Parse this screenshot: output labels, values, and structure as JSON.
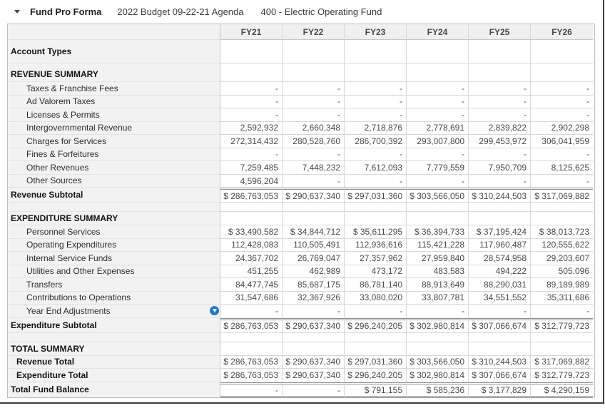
{
  "titlebar": {
    "title": "Fund Pro Forma",
    "agenda": "2022 Budget 09-22-21 Agenda",
    "fund": "400 - Electric Operating Fund"
  },
  "table": {
    "columns": [
      "FY21",
      "FY22",
      "FY23",
      "FY24",
      "FY25",
      "FY26"
    ],
    "rows": [
      {
        "style": "tall-group",
        "label": "Account Types",
        "values": [
          "",
          "",
          "",
          "",
          "",
          ""
        ]
      },
      {
        "style": "section-tall",
        "label": "REVENUE SUMMARY",
        "values": [
          "",
          "",
          "",
          "",
          "",
          ""
        ]
      },
      {
        "style": "item",
        "label": "Taxes & Franchise Fees",
        "values": [
          "-",
          "-",
          "-",
          "-",
          "-",
          "-"
        ]
      },
      {
        "style": "item",
        "label": "Ad Valorem Taxes",
        "values": [
          "-",
          "-",
          "-",
          "-",
          "-",
          "-"
        ]
      },
      {
        "style": "item",
        "label": "Licenses & Permits",
        "values": [
          "-",
          "-",
          "-",
          "-",
          "-",
          "-"
        ]
      },
      {
        "style": "item",
        "label": "Intergovernmental Revenue",
        "values": [
          "2,592,932",
          "2,660,348",
          "2,718,876",
          "2,778,691",
          "2,839,822",
          "2,902,298"
        ]
      },
      {
        "style": "item",
        "label": "Charges for Services",
        "values": [
          "272,314,432",
          "280,528,760",
          "286,700,392",
          "293,007,800",
          "299,453,972",
          "306,041,959"
        ]
      },
      {
        "style": "item",
        "label": "Fines & Forfeitures",
        "values": [
          "-",
          "-",
          "-",
          "-",
          "-",
          "-"
        ]
      },
      {
        "style": "item",
        "label": "Other Revenues",
        "values": [
          "7,259,485",
          "7,448,232",
          "7,612,093",
          "7,779,559",
          "7,950,709",
          "8,125,625"
        ]
      },
      {
        "style": "item",
        "label": "Other Sources",
        "values": [
          "4,596,204",
          "-",
          "-",
          "-",
          "-",
          "-"
        ]
      },
      {
        "style": "subtotal",
        "label": "Revenue Subtotal",
        "values": [
          "$ 286,763,053",
          "$ 290,637,340",
          "$ 297,031,360",
          "$ 303,566,050",
          "$ 310,244,503",
          "$ 317,069,882"
        ]
      },
      {
        "style": "spacer",
        "label": "",
        "values": [
          "",
          "",
          "",
          "",
          "",
          ""
        ]
      },
      {
        "style": "section",
        "label": "EXPENDITURE SUMMARY",
        "values": [
          "",
          "",
          "",
          "",
          "",
          ""
        ]
      },
      {
        "style": "item",
        "label": "Personnel Services",
        "values": [
          "$ 33,490,582",
          "$ 34,844,712",
          "$ 35,611,295",
          "$ 36,394,733",
          "$ 37,195,424",
          "$ 38,013,723"
        ]
      },
      {
        "style": "item",
        "label": "Operating Expenditures",
        "values": [
          "112,428,083",
          "110,505,491",
          "112,936,616",
          "115,421,228",
          "117,960,487",
          "120,555,622"
        ]
      },
      {
        "style": "item",
        "label": "Internal Service Funds",
        "values": [
          "24,367,702",
          "26,769,047",
          "27,357,962",
          "27,959,840",
          "28,574,958",
          "29,203,607"
        ]
      },
      {
        "style": "item",
        "label": "Utilities and Other Expenses",
        "values": [
          "451,255",
          "462,989",
          "473,172",
          "483,583",
          "494,222",
          "505,096"
        ]
      },
      {
        "style": "item",
        "label": "Transfers",
        "values": [
          "84,477,745",
          "85,687,175",
          "86,781,140",
          "88,913,649",
          "88,290,031",
          "89,189,989"
        ]
      },
      {
        "style": "item",
        "label": "Contributions to Operations",
        "values": [
          "31,547,686",
          "32,367,926",
          "33,080,020",
          "33,807,781",
          "34,551,552",
          "35,311,686"
        ]
      },
      {
        "style": "item",
        "label": "Year End Adjustments",
        "icon": "chevron-down-circle",
        "values": [
          "-",
          "-",
          "-",
          "-",
          "-",
          "-"
        ]
      },
      {
        "style": "subtotal",
        "label": "Expenditure Subtotal",
        "values": [
          "$ 286,763,053",
          "$ 290,637,340",
          "$ 296,240,205",
          "$ 302,980,814",
          "$ 307,066,674",
          "$ 312,779,723"
        ]
      },
      {
        "style": "spacer",
        "label": "",
        "values": [
          "",
          "",
          "",
          "",
          "",
          ""
        ]
      },
      {
        "style": "section",
        "label": "TOTAL SUMMARY",
        "values": [
          "",
          "",
          "",
          "",
          "",
          ""
        ]
      },
      {
        "style": "total-item",
        "label": "Revenue Total",
        "values": [
          "$ 286,763,053",
          "$ 290,637,340",
          "$ 297,031,360",
          "$ 303,566,050",
          "$ 310,244,503",
          "$ 317,069,882"
        ]
      },
      {
        "style": "total-item",
        "label": "Expenditure Total",
        "values": [
          "$ 286,763,053",
          "$ 290,637,340",
          "$ 296,240,205",
          "$ 302,980,814",
          "$ 307,066,674",
          "$ 312,779,723"
        ]
      },
      {
        "style": "grand-total",
        "label": "Total Fund Balance",
        "values": [
          "-",
          "-",
          "$ 791,155",
          "$ 585,236",
          "$ 3,177,829",
          "$ 4,290,159"
        ]
      }
    ]
  },
  "colors": {
    "accent_blue": "#2278c4",
    "header_bg": "#f0f0f0",
    "label_column_bg": "#f2f2f2",
    "grid_border": "#d8d8d8",
    "strong_border": "#8f8f8f",
    "frame_edge": "#3d3d3d"
  }
}
